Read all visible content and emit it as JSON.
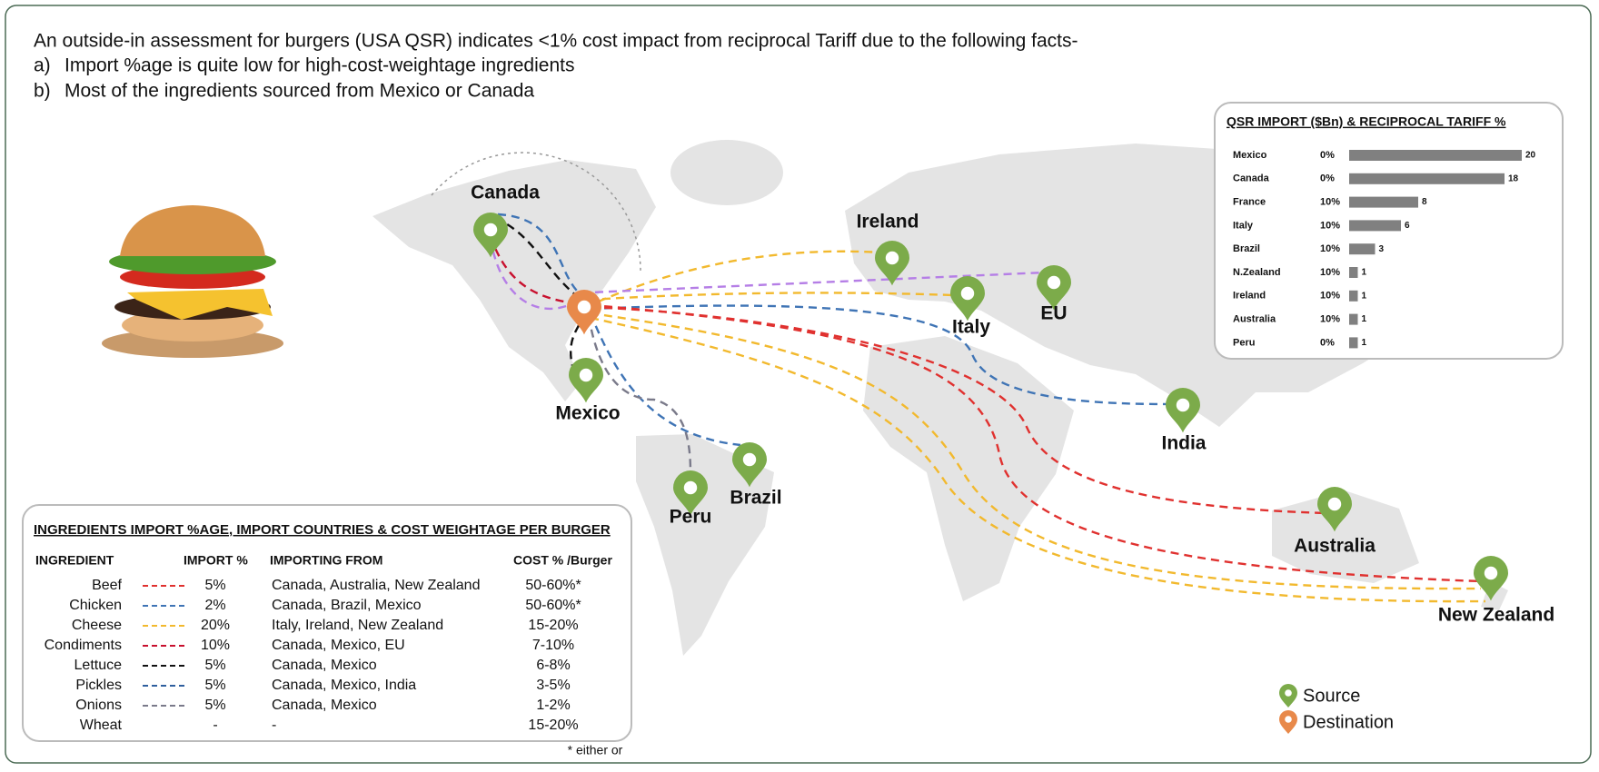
{
  "header": {
    "title": "An outside-in assessment for burgers (USA QSR) indicates <1% cost impact from reciprocal Tariff due to the following facts-",
    "markers": [
      "a)",
      "b)"
    ],
    "points": [
      "Import %age is quite low for high-cost-weightage ingredients",
      "Most of the ingredients sourced from Mexico or Canada"
    ]
  },
  "chart_data": {
    "type": "bar",
    "orientation": "horizontal",
    "title": "QSR IMPORT ($Bn) & RECIPROCAL TARIFF %",
    "categories": [
      "Mexico",
      "Canada",
      "France",
      "Italy",
      "Brazil",
      "N.Zealand",
      "Ireland",
      "Australia",
      "Peru"
    ],
    "tariffs": [
      "0%",
      "0%",
      "10%",
      "10%",
      "10%",
      "10%",
      "10%",
      "10%",
      "0%"
    ],
    "values": [
      20,
      18,
      8,
      6,
      3,
      1,
      1,
      1,
      1
    ],
    "color": "#808080",
    "xlim": [
      0,
      20
    ]
  },
  "map": {
    "pins": [
      {
        "label": "Canada",
        "kind": "source"
      },
      {
        "label": "Mexico",
        "kind": "source"
      },
      {
        "label": "Ireland",
        "kind": "source"
      },
      {
        "label": "Italy",
        "kind": "source"
      },
      {
        "label": "EU",
        "kind": "source"
      },
      {
        "label": "India",
        "kind": "source"
      },
      {
        "label": "Brazil",
        "kind": "source"
      },
      {
        "label": "Peru",
        "kind": "source"
      },
      {
        "label": "Australia",
        "kind": "source"
      },
      {
        "label": "New Zealand",
        "kind": "source"
      }
    ]
  },
  "legend": {
    "items": [
      {
        "label": "Source",
        "color": "#7cab4a"
      },
      {
        "label": "Destination",
        "color": "#e8894a"
      }
    ]
  },
  "table": {
    "title": "INGREDIENTS IMPORT %AGE, IMPORT COUNTRIES & COST WEIGHTAGE PER BURGER",
    "columns": [
      "INGREDIENT",
      "IMPORT %",
      "IMPORTING FROM",
      "COST % /Burger"
    ],
    "rows": [
      {
        "ingredient": "Beef",
        "color": "#e0312f",
        "import": "5%",
        "from": "Canada, Australia, New Zealand",
        "cost": "50-60%*"
      },
      {
        "ingredient": "Chicken",
        "color": "#3f74b5",
        "import": "2%",
        "from": "Canada, Brazil, Mexico",
        "cost": "50-60%*"
      },
      {
        "ingredient": "Cheese",
        "color": "#f2b92e",
        "import": "20%",
        "from": "Italy, Ireland, New Zealand",
        "cost": "15-20%"
      },
      {
        "ingredient": "Condiments",
        "color": "#c8102e",
        "import": "10%",
        "from": "Canada, Mexico, EU",
        "cost": "7-10%"
      },
      {
        "ingredient": "Lettuce",
        "color": "#111111",
        "import": "5%",
        "from": "Canada, Mexico",
        "cost": "6-8%"
      },
      {
        "ingredient": "Pickles",
        "color": "#2f5f9e",
        "import": "5%",
        "from": "Canada, Mexico, India",
        "cost": "3-5%"
      },
      {
        "ingredient": "Onions",
        "color": "#7a7a8a",
        "import": "5%",
        "from": "Canada, Mexico",
        "cost": "1-2%"
      },
      {
        "ingredient": "Wheat",
        "import": "-",
        "from": "-",
        "cost": "15-20%"
      }
    ],
    "footnote": "* either or"
  }
}
